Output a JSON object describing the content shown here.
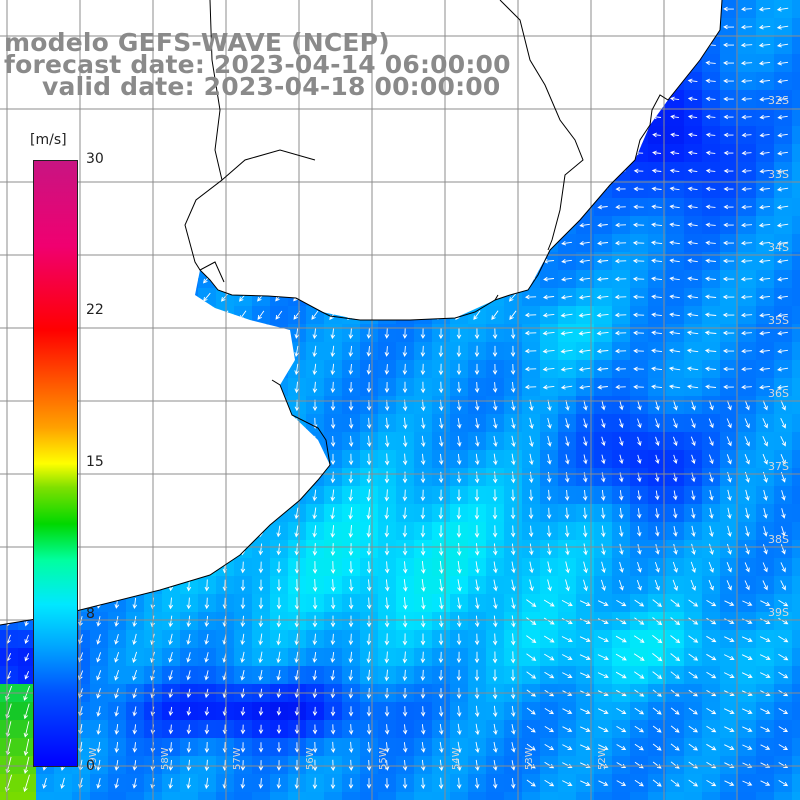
{
  "title": {
    "line1": "modelo GEFS-WAVE (NCEP)",
    "line2": "forecast date: 2023-04-14 06:00:00",
    "line3": "valid date: 2023-04-18 00:00:00"
  },
  "colorbar": {
    "unit": "[m/s]",
    "ticks": [
      "30",
      "22",
      "15",
      "8",
      "0"
    ],
    "min": 0,
    "max": 30
  },
  "lat_labels": [
    "32S",
    "33S",
    "34S",
    "35S",
    "36S",
    "37S",
    "38S",
    "39S"
  ],
  "lon_labels": [
    "59W",
    "58W",
    "57W",
    "56W",
    "55W",
    "54W",
    "53W",
    "52W"
  ],
  "colors": {
    "land": "#ffffff",
    "coast": "#000000",
    "grid": "#8c8c8c",
    "arrow": "#ffffff",
    "title": "#8a8a8a"
  },
  "field": "wind speed and direction",
  "typical_direction": "south-southwest"
}
